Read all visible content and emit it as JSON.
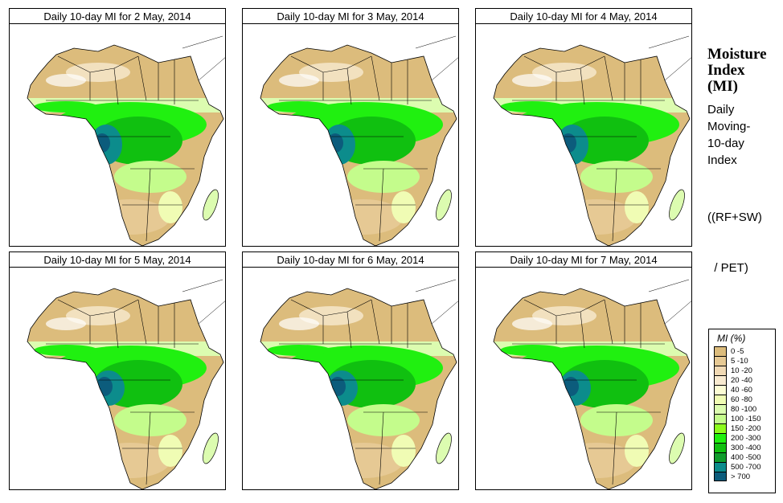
{
  "panels": [
    {
      "title": "Daily 10-day MI for  2 May, 2014"
    },
    {
      "title": "Daily 10-day MI for  3 May, 2014"
    },
    {
      "title": "Daily 10-day MI for  4 May, 2014"
    },
    {
      "title": "Daily 10-day MI for  5 May, 2014"
    },
    {
      "title": "Daily 10-day MI for  6 May, 2014"
    },
    {
      "title": "Daily 10-day MI for  7 May, 2014"
    }
  ],
  "side": {
    "title_lines": [
      "Moisture",
      "Index",
      "(MI)"
    ],
    "desc_lines": [
      "Daily",
      "Moving-",
      "10-day",
      "Index"
    ],
    "formula_lines": [
      "((RF+SW)",
      "  / PET)"
    ]
  },
  "legend": {
    "title": "MI (%)",
    "items": [
      {
        "label": "0 -5",
        "color": "#dcbc7c"
      },
      {
        "label": "5 -10",
        "color": "#e6c994"
      },
      {
        "label": "10 -20",
        "color": "#f0d9b4"
      },
      {
        "label": "20 -40",
        "color": "#f8ead0"
      },
      {
        "label": "40 -60",
        "color": "#fcfcd4"
      },
      {
        "label": "60 -80",
        "color": "#f0fcb4"
      },
      {
        "label": "80 -100",
        "color": "#dcfcb0"
      },
      {
        "label": "100 -150",
        "color": "#c4fc8c"
      },
      {
        "label": "150 -200",
        "color": "#8cfc1c"
      },
      {
        "label": "200 -300",
        "color": "#20f010"
      },
      {
        "label": "300 -400",
        "color": "#10c010"
      },
      {
        "label": "400 -500",
        "color": "#109c2c"
      },
      {
        "label": "500 -700",
        "color": "#0c8c8c"
      },
      {
        "label": "> 700",
        "color": "#0c5c7c"
      }
    ]
  }
}
